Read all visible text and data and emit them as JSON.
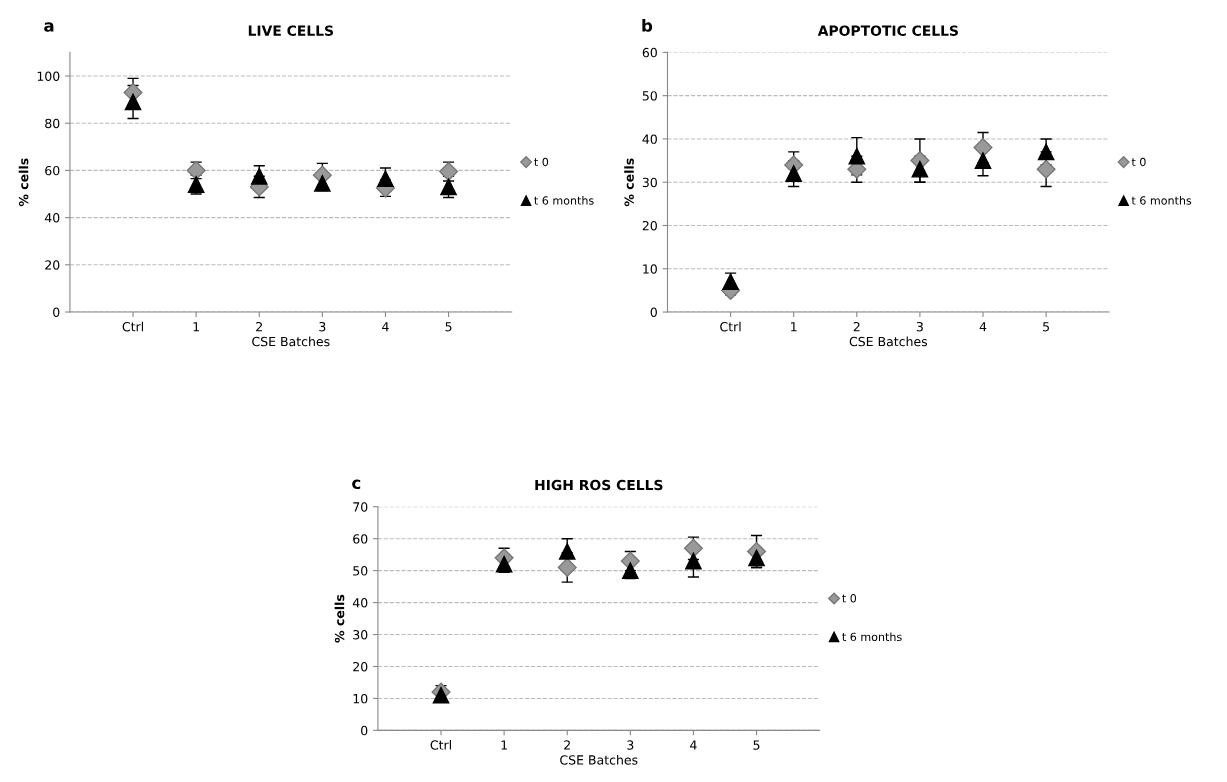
{
  "chart_data": [
    {
      "type": "scatter",
      "title": "LIVE CELLS",
      "xlabel": "CSE Batches",
      "ylabel": "% cells",
      "annotations": [
        "a"
      ],
      "categories": [
        "Ctrl",
        "1",
        "2",
        "3",
        "4",
        "5"
      ],
      "ylim": [
        0,
        110
      ],
      "yticks": [
        0,
        20,
        40,
        60,
        80,
        100
      ],
      "grid": "y",
      "legend": "right",
      "series": [
        {
          "name": "t 0",
          "color": "#999999",
          "marker": "diamond",
          "values": [
            93,
            60,
            53,
            58,
            52.5,
            59.5
          ],
          "errors": [
            6,
            3.5,
            4.5,
            5,
            3.5,
            4
          ]
        },
        {
          "name": "t 6 months",
          "color": "#000000",
          "marker": "triangle",
          "values": [
            89,
            54,
            57.5,
            54.5,
            56.5,
            53
          ],
          "errors": [
            7,
            4,
            4.5,
            3,
            4.5,
            4.5
          ]
        }
      ]
    },
    {
      "type": "scatter",
      "title": "APOPTOTIC CELLS",
      "xlabel": "CSE Batches",
      "ylabel": "% cells",
      "annotations": [
        "b"
      ],
      "categories": [
        "Ctrl",
        "1",
        "2",
        "3",
        "4",
        "5"
      ],
      "ylim": [
        0,
        60
      ],
      "yticks": [
        0,
        10,
        20,
        30,
        40,
        50,
        60
      ],
      "grid": "y",
      "legend": "right",
      "series": [
        {
          "name": "t 0",
          "color": "#999999",
          "marker": "diamond",
          "values": [
            5,
            34,
            33,
            35,
            38,
            33
          ],
          "errors": [
            1,
            3,
            3,
            5,
            3.5,
            4
          ]
        },
        {
          "name": "t 6 months",
          "color": "#000000",
          "marker": "triangle",
          "values": [
            7,
            32,
            36,
            33,
            35,
            37
          ],
          "errors": [
            2,
            3,
            4.3,
            3,
            3.5,
            3
          ]
        }
      ]
    },
    {
      "type": "scatter",
      "title": "HIGH ROS CELLS",
      "xlabel": "CSE Batches",
      "ylabel": "% cells",
      "annotations": [
        "c"
      ],
      "categories": [
        "Ctrl",
        "1",
        "2",
        "3",
        "4",
        "5"
      ],
      "ylim": [
        0,
        70
      ],
      "yticks": [
        0,
        10,
        20,
        30,
        40,
        50,
        60,
        70
      ],
      "grid": "y",
      "legend": "right",
      "series": [
        {
          "name": "t 0",
          "color": "#999999",
          "marker": "diamond",
          "values": [
            12,
            54,
            51,
            53,
            57,
            56
          ],
          "errors": [
            2,
            3,
            4.6,
            3,
            3.5,
            5
          ]
        },
        {
          "name": "t 6 months",
          "color": "#000000",
          "marker": "triangle",
          "values": [
            11,
            52,
            56,
            50,
            53,
            54
          ],
          "errors": [
            2,
            2.5,
            4,
            2.5,
            5,
            3
          ]
        }
      ]
    }
  ]
}
